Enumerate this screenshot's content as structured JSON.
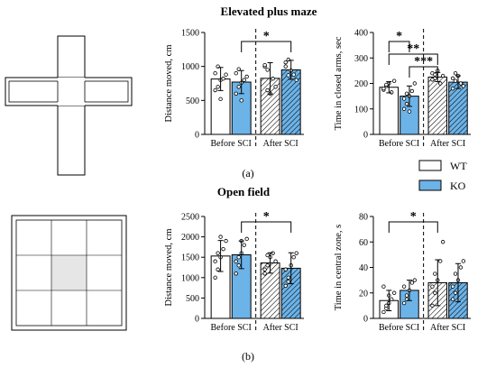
{
  "titles": {
    "epm": "Elevated plus maze",
    "of": "Open field"
  },
  "panel_labels": {
    "a": "(a)",
    "b": "(b)"
  },
  "group_labels": [
    "Before SCI",
    "After SCI"
  ],
  "legend": [
    {
      "label": "WT",
      "color": "#ffffff",
      "hatched": false
    },
    {
      "label": "KO",
      "color": "#6cb3e8",
      "hatched": false
    }
  ],
  "colors": {
    "wt": "#ffffff",
    "ko": "#6cb3e8",
    "stroke": "#000000"
  },
  "chart_data": [
    {
      "type": "bar",
      "panel": "a",
      "ylabel": "Distance moved, cm",
      "ylim": [
        0,
        1500
      ],
      "yticks": [
        0,
        500,
        1000,
        1500
      ],
      "categories": [
        "Before SCI",
        "After SCI"
      ],
      "series": [
        {
          "name": "WT",
          "values": [
            815,
            825
          ],
          "err": [
            170,
            230
          ]
        },
        {
          "name": "KO",
          "values": [
            770,
            950
          ],
          "err": [
            170,
            140
          ]
        }
      ],
      "points": {
        "WT": [
          [
            650,
            700,
            800,
            820,
            880,
            900,
            1000,
            520
          ],
          [
            1000,
            950,
            600,
            820,
            700,
            1020,
            650
          ]
        ],
        "KO": [
          [
            600,
            700,
            760,
            800,
            850,
            900,
            960,
            500
          ],
          [
            1060,
            1100,
            940,
            880,
            800,
            1000,
            870
          ]
        ]
      },
      "significance": [
        {
          "from": "Before SCI KO",
          "to": "After SCI KO",
          "label": "*"
        }
      ]
    },
    {
      "type": "bar",
      "panel": "a",
      "ylabel": "Time in closed arms, sec",
      "ylim": [
        0,
        400
      ],
      "yticks": [
        0,
        100,
        200,
        300,
        400
      ],
      "categories": [
        "Before SCI",
        "After SCI"
      ],
      "series": [
        {
          "name": "WT",
          "values": [
            185,
            225
          ],
          "err": [
            22,
            18
          ]
        },
        {
          "name": "KO",
          "values": [
            150,
            205
          ],
          "err": [
            40,
            25
          ]
        }
      ],
      "points": {
        "WT": [
          [
            175,
            190,
            200,
            165,
            210,
            180,
            195
          ],
          [
            240,
            220,
            250,
            200,
            230,
            215,
            235
          ]
        ],
        "KO": [
          [
            100,
            120,
            150,
            170,
            200,
            140,
            160,
            90
          ],
          [
            180,
            210,
            230,
            200,
            190,
            220,
            240
          ]
        ]
      },
      "significance": [
        {
          "from": "Before SCI WT",
          "to": "Before SCI KO",
          "label": "*"
        },
        {
          "from": "Before SCI WT",
          "to": "After SCI WT",
          "label": "**"
        },
        {
          "from": "Before SCI KO",
          "to": "After SCI WT",
          "label": "***"
        }
      ]
    },
    {
      "type": "bar",
      "panel": "b",
      "ylabel": "Distance moved, cm",
      "ylim": [
        0,
        2500
      ],
      "yticks": [
        0,
        500,
        1000,
        1500,
        2000,
        2500
      ],
      "categories": [
        "Before SCI",
        "After SCI"
      ],
      "series": [
        {
          "name": "WT",
          "values": [
            1530,
            1360
          ],
          "err": [
            380,
            250
          ]
        },
        {
          "name": "KO",
          "values": [
            1560,
            1230
          ],
          "err": [
            340,
            380
          ]
        }
      ],
      "points": {
        "WT": [
          [
            1000,
            1200,
            1500,
            1700,
            1900,
            1400,
            1600,
            2000
          ],
          [
            1100,
            1300,
            1500,
            1600,
            1400,
            1200,
            1550
          ]
        ],
        "KO": [
          [
            1100,
            1300,
            1600,
            1800,
            1950,
            1400,
            1500,
            1900
          ],
          [
            800,
            1000,
            1300,
            1500,
            1600,
            1200,
            900
          ]
        ]
      },
      "significance": [
        {
          "from": "Before SCI KO",
          "to": "After SCI KO",
          "label": "*"
        }
      ]
    },
    {
      "type": "bar",
      "panel": "b",
      "ylabel": "Time in central zone, s",
      "ylim": [
        0,
        80
      ],
      "yticks": [
        0,
        20,
        40,
        60,
        80
      ],
      "categories": [
        "Before SCI",
        "After SCI"
      ],
      "series": [
        {
          "name": "WT",
          "values": [
            14,
            28
          ],
          "err": [
            8,
            18
          ]
        },
        {
          "name": "KO",
          "values": [
            22,
            28
          ],
          "err": [
            8,
            15
          ]
        }
      ],
      "points": {
        "WT": [
          [
            5,
            8,
            12,
            15,
            20,
            25,
            10,
            18
          ],
          [
            10,
            20,
            30,
            45,
            60,
            25,
            35
          ]
        ],
        "KO": [
          [
            12,
            18,
            22,
            28,
            30,
            25,
            15
          ],
          [
            15,
            20,
            30,
            40,
            45,
            25,
            35
          ]
        ]
      },
      "significance": [
        {
          "from": "Before SCI WT",
          "to": "After SCI WT",
          "label": "*"
        }
      ]
    }
  ]
}
